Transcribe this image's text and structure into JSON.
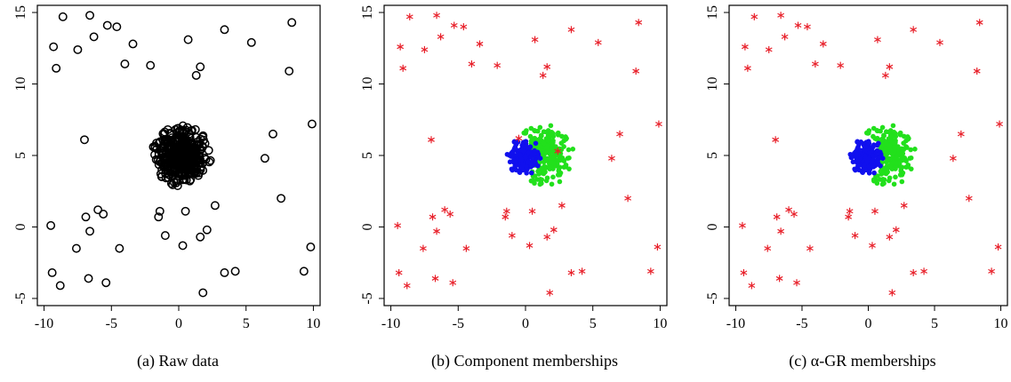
{
  "captions": {
    "a": "(a) Raw data",
    "b": "(b) Component memberships",
    "c": "(c) α-GR memberships"
  },
  "colors": {
    "ink": "#000000",
    "outlier": "#e8202a",
    "green": "#22e01c",
    "blue": "#1010ee"
  },
  "chart_data": [
    {
      "type": "scatter",
      "panel": "a",
      "title": "(a) Raw data",
      "xlim": [
        -10.5,
        10.5
      ],
      "ylim": [
        -5.5,
        15.5
      ],
      "xticks": [
        -10,
        -5,
        0,
        5,
        10
      ],
      "yticks": [
        -5,
        0,
        5,
        10,
        15
      ],
      "marker": "open-circle",
      "series": [
        {
          "group": "outliers",
          "marker": "open-circle",
          "x": [
            -8.6,
            -6.6,
            -5.3,
            -4.6,
            -9.3,
            -9.1,
            -6.3,
            -7.5,
            -3.4,
            -4.0,
            -2.1,
            0.7,
            1.6,
            1.3,
            3.4,
            5.4,
            8.4,
            8.2,
            9.9,
            7.0,
            6.4,
            -7.0,
            7.6,
            -9.5,
            -6.9,
            -6.0,
            -5.6,
            -6.6,
            -1.4,
            -1.5,
            0.5,
            2.7,
            -1.0,
            2.1,
            1.6,
            0.3,
            -7.6,
            -4.4,
            -9.4,
            -8.8,
            -6.7,
            -5.4,
            3.4,
            4.2,
            1.8,
            9.8,
            9.3
          ],
          "y": [
            14.7,
            14.8,
            14.1,
            14.0,
            12.6,
            11.1,
            13.3,
            12.4,
            12.8,
            11.4,
            11.3,
            13.1,
            11.2,
            10.6,
            13.8,
            12.9,
            14.3,
            10.9,
            7.2,
            6.5,
            4.8,
            6.1,
            2.0,
            0.1,
            0.7,
            1.2,
            0.9,
            -0.3,
            1.1,
            0.7,
            1.1,
            1.5,
            -0.6,
            -0.2,
            -0.7,
            -1.3,
            -1.5,
            -1.5,
            -3.2,
            -4.1,
            -3.6,
            -3.9,
            -3.2,
            -3.1,
            -4.6,
            -1.4,
            -3.1
          ]
        }
      ],
      "cluster": {
        "center": [
          0.2,
          5.0
        ],
        "radius": 2.2,
        "n_points": 400
      }
    },
    {
      "type": "scatter",
      "panel": "b",
      "title": "(b) Component memberships",
      "xlim": [
        -10.5,
        10.5
      ],
      "ylim": [
        -5.5,
        15.5
      ],
      "xticks": [
        -10,
        -5,
        0,
        5,
        10
      ],
      "yticks": [
        -5,
        0,
        5,
        10,
        15
      ],
      "series": [
        {
          "group": "outliers",
          "marker": "asterisk",
          "color": "#e8202a",
          "x": [
            -8.6,
            -6.6,
            -5.3,
            -4.6,
            -9.3,
            -9.1,
            -6.3,
            -7.5,
            -3.4,
            -4.0,
            -2.1,
            0.7,
            1.6,
            1.3,
            3.4,
            5.4,
            8.4,
            8.2,
            9.9,
            7.0,
            6.4,
            -7.0,
            7.6,
            -9.5,
            -6.9,
            -6.0,
            -5.6,
            -6.6,
            -1.4,
            -1.5,
            0.5,
            2.7,
            -1.0,
            2.1,
            1.6,
            0.3,
            -7.6,
            -4.4,
            -9.4,
            -8.8,
            -6.7,
            -5.4,
            3.4,
            4.2,
            1.8,
            9.8,
            9.3,
            2.4,
            -0.5
          ],
          "y": [
            14.7,
            14.8,
            14.1,
            14.0,
            12.6,
            11.1,
            13.3,
            12.4,
            12.8,
            11.4,
            11.3,
            13.1,
            11.2,
            10.6,
            13.8,
            12.9,
            14.3,
            10.9,
            7.2,
            6.5,
            4.8,
            6.1,
            2.0,
            0.1,
            0.7,
            1.2,
            0.9,
            -0.3,
            1.1,
            0.7,
            1.1,
            1.5,
            -0.6,
            -0.2,
            -0.7,
            -1.3,
            -1.5,
            -1.5,
            -3.2,
            -4.1,
            -3.6,
            -3.9,
            -3.2,
            -3.1,
            -4.6,
            -1.4,
            -3.1,
            5.3,
            6.2
          ]
        },
        {
          "group": "component-1",
          "marker": "filled-circle",
          "color": "#1010ee",
          "center": [
            -0.1,
            4.9
          ],
          "radius": 1.3,
          "n_points": 150
        },
        {
          "group": "component-2",
          "marker": "filled-circle",
          "color": "#22e01c",
          "center": [
            1.4,
            5.0
          ],
          "radius": 2.2,
          "n_points": 220
        }
      ]
    },
    {
      "type": "scatter",
      "panel": "c",
      "title": "(c) α-GR memberships",
      "xlim": [
        -10.5,
        10.5
      ],
      "ylim": [
        -5.5,
        15.5
      ],
      "xticks": [
        -10,
        -5,
        0,
        5,
        10
      ],
      "yticks": [
        -5,
        0,
        5,
        10,
        15
      ],
      "series": [
        {
          "group": "outliers",
          "marker": "asterisk",
          "color": "#e8202a",
          "x": [
            -8.6,
            -6.6,
            -5.3,
            -4.6,
            -9.3,
            -9.1,
            -6.3,
            -7.5,
            -3.4,
            -4.0,
            -2.1,
            0.7,
            1.6,
            1.3,
            3.4,
            5.4,
            8.4,
            8.2,
            9.9,
            7.0,
            6.4,
            -7.0,
            7.6,
            -9.5,
            -6.9,
            -6.0,
            -5.6,
            -6.6,
            -1.4,
            -1.5,
            0.5,
            2.7,
            -1.0,
            2.1,
            1.6,
            0.3,
            -7.6,
            -4.4,
            -9.4,
            -8.8,
            -6.7,
            -5.4,
            3.4,
            4.2,
            1.8,
            9.8,
            9.3
          ],
          "y": [
            14.7,
            14.8,
            14.1,
            14.0,
            12.6,
            11.1,
            13.3,
            12.4,
            12.8,
            11.4,
            11.3,
            13.1,
            11.2,
            10.6,
            13.8,
            12.9,
            14.3,
            10.9,
            7.2,
            6.5,
            4.8,
            6.1,
            2.0,
            0.1,
            0.7,
            1.2,
            0.9,
            -0.3,
            1.1,
            0.7,
            1.1,
            1.5,
            -0.6,
            -0.2,
            -0.7,
            -1.3,
            -1.5,
            -1.5,
            -3.2,
            -4.1,
            -3.6,
            -3.9,
            -3.2,
            -3.1,
            -4.6,
            -1.4,
            -3.1
          ]
        },
        {
          "group": "component-1",
          "marker": "filled-circle",
          "color": "#1010ee",
          "center": [
            -0.1,
            4.9
          ],
          "radius": 1.3,
          "n_points": 170
        },
        {
          "group": "component-2",
          "marker": "filled-circle",
          "color": "#22e01c",
          "center": [
            1.4,
            5.0
          ],
          "radius": 2.2,
          "n_points": 200
        }
      ]
    }
  ]
}
